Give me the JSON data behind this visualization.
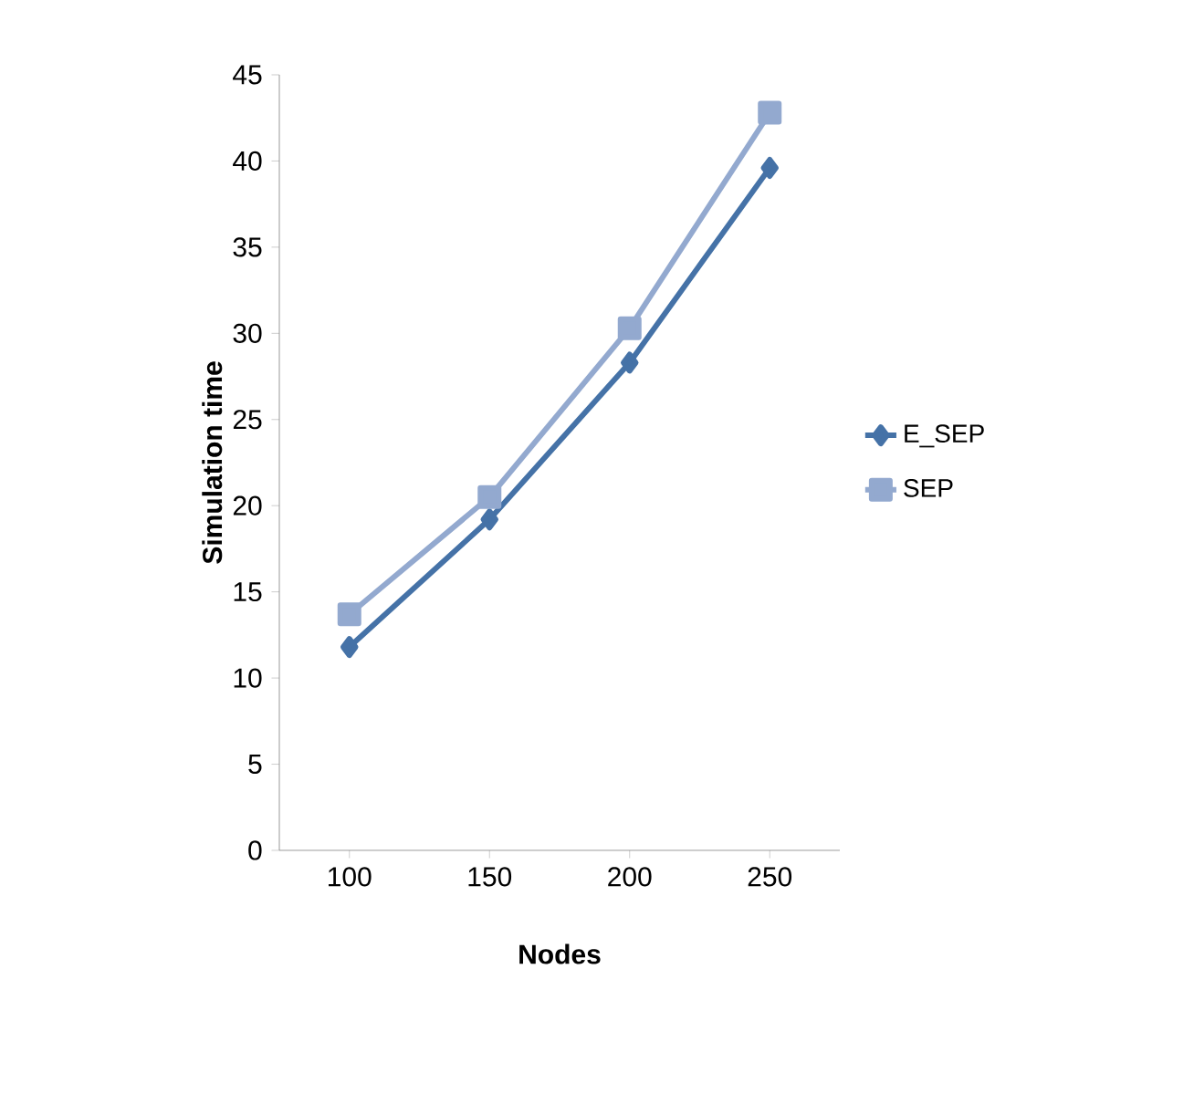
{
  "chart_data": {
    "type": "line",
    "xlabel": "Nodes",
    "ylabel": "Simulation time",
    "categories": [
      "100",
      "150",
      "200",
      "250"
    ],
    "series": [
      {
        "name": "E_SEP",
        "color": "#4572a7",
        "values": [
          11.8,
          19.2,
          28.3,
          39.6
        ],
        "marker": "diamond"
      },
      {
        "name": "SEP",
        "color": "#93a9cf",
        "values": [
          13.7,
          20.5,
          30.3,
          42.8
        ],
        "marker": "square"
      }
    ],
    "ylim": [
      0,
      45
    ],
    "yticks": [
      0,
      5,
      10,
      15,
      20,
      25,
      30,
      35,
      40,
      45
    ],
    "grid": false,
    "legend": "right",
    "line_style": "solid"
  }
}
